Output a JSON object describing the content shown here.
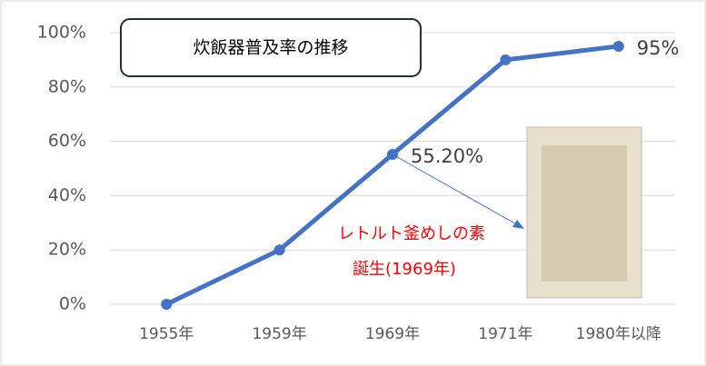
{
  "chart_data": {
    "type": "line",
    "title": "炊飯器普及率の推移",
    "categories": [
      "1955年",
      "1959年",
      "1969年",
      "1971年",
      "1980年以降"
    ],
    "values": [
      0,
      20,
      55.2,
      90,
      95
    ],
    "value_labels": [
      null,
      null,
      "55.20%",
      null,
      "95%"
    ],
    "color": "#4472c4",
    "ylim": [
      0,
      100
    ],
    "yticks": [
      {
        "value": 0,
        "label": "0%"
      },
      {
        "value": 20,
        "label": "20%"
      },
      {
        "value": 40,
        "label": "40%"
      },
      {
        "value": 60,
        "label": "60%"
      },
      {
        "value": 80,
        "label": "80%"
      },
      {
        "value": 100,
        "label": "100%"
      }
    ],
    "grid": true,
    "annotations": [
      "レトルト釜めしの素",
      "誕生(1969年)"
    ]
  }
}
